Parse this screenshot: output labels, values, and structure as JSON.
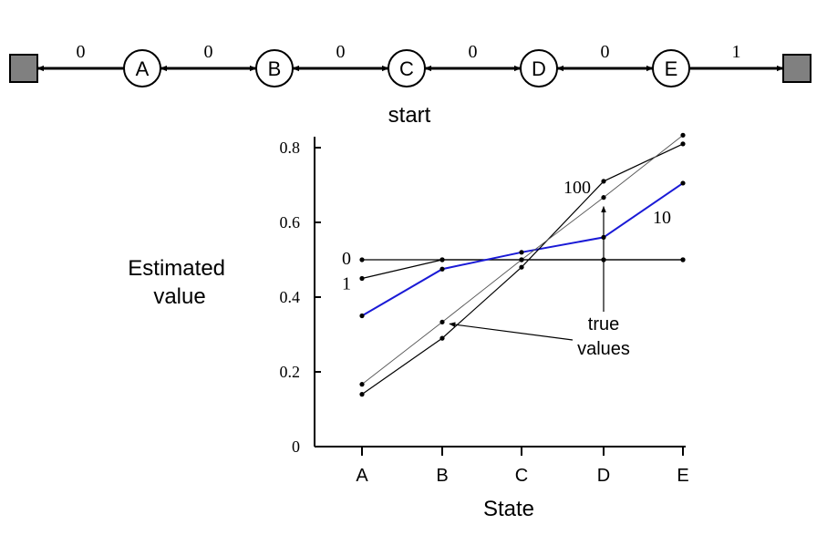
{
  "diagram": {
    "states": [
      "A",
      "B",
      "C",
      "D",
      "E"
    ],
    "edge_rewards": [
      "0",
      "0",
      "0",
      "0",
      "0",
      "1"
    ],
    "start_label": "start",
    "terminal_color": "#808080"
  },
  "chart_data": {
    "type": "line",
    "title": "",
    "xlabel": "State",
    "ylabel": "Estimated value",
    "categories": [
      "A",
      "B",
      "C",
      "D",
      "E"
    ],
    "ylim": [
      0,
      0.8
    ],
    "yticks": [
      "0",
      "0.2",
      "0.4",
      "0.6",
      "0.8"
    ],
    "grid": false,
    "series": [
      {
        "name": "0",
        "values": [
          0.5,
          0.5,
          0.5,
          0.5,
          0.5
        ],
        "color": "#000000"
      },
      {
        "name": "1",
        "values": [
          0.45,
          0.5,
          0.5,
          0.5,
          0.5
        ],
        "color": "#000000"
      },
      {
        "name": "10",
        "values": [
          0.35,
          0.475,
          0.52,
          0.56,
          0.705
        ],
        "color": "#1a1ad6"
      },
      {
        "name": "100",
        "values": [
          0.14,
          0.29,
          0.48,
          0.71,
          0.81
        ],
        "color": "#000000"
      },
      {
        "name": "true values",
        "values": [
          0.1667,
          0.3333,
          0.5,
          0.6667,
          0.8333
        ],
        "color": "#555555"
      }
    ],
    "annotations": {
      "true_values": "true\nvalues"
    }
  }
}
